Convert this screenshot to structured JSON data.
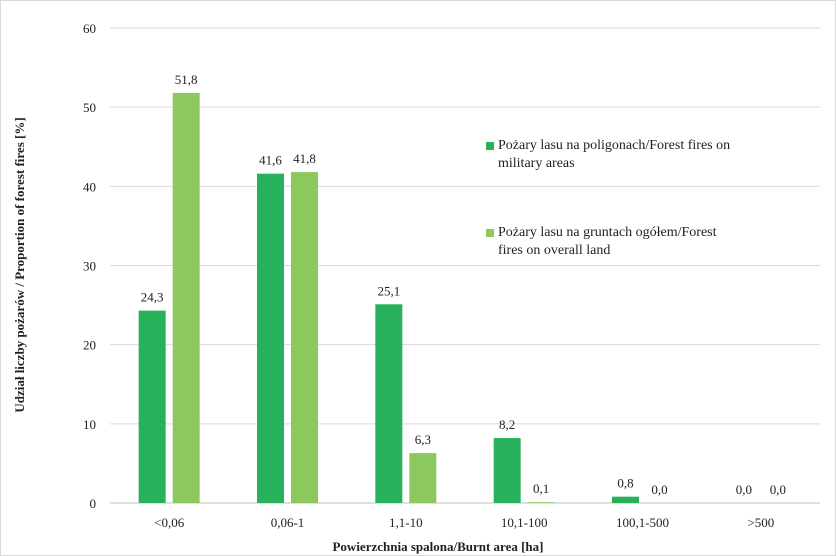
{
  "chart_data": {
    "type": "bar",
    "xlabel": "Powierzchnia spalona/Burnt area [ha]",
    "ylabel": "Udział liczby pożarów / Proportion of forest fires [%]",
    "ylim": [
      0,
      60
    ],
    "yticks": [
      "0",
      "10",
      "20",
      "30",
      "40",
      "50",
      "60"
    ],
    "grid": true,
    "legend_position": "right",
    "categories": [
      "<0,06",
      "0,06-1",
      "1,1-10",
      "10,1-100",
      "100,1-500",
      ">500"
    ],
    "series": [
      {
        "name": "Pożary lasu na poligonach/Forest fires on military areas",
        "color": "#27b15a",
        "values": [
          24.3,
          41.6,
          25.1,
          8.2,
          0.8,
          0.0
        ],
        "labels": [
          "24,3",
          "41,6",
          "25,1",
          "8,2",
          "0,8",
          "0,0"
        ]
      },
      {
        "name": "Pożary lasu na gruntach ogółem/Forest fires on overall land",
        "color": "#8cc85e",
        "values": [
          51.8,
          41.8,
          6.3,
          0.1,
          0.0,
          0.0
        ],
        "labels": [
          "51,8",
          "41,8",
          "6,3",
          "0,1",
          "0,0",
          "0,0"
        ]
      }
    ]
  }
}
